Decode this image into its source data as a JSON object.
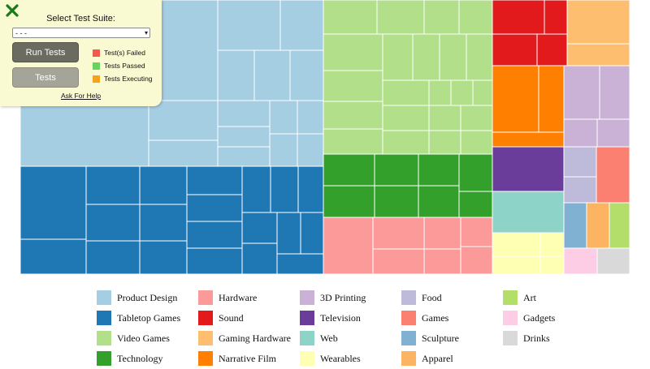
{
  "panel": {
    "title": "Select Test Suite:",
    "select_value": "- - -",
    "close_icon": "close-x-icon",
    "close_color": "#1a7a1a",
    "run_button": "Run Tests",
    "tests_button": "Tests",
    "help_link": "Ask For Help",
    "status": [
      {
        "label": "Test(s) Failed",
        "color": "#f05a4d"
      },
      {
        "label": "Tests Passed",
        "color": "#66d35f"
      },
      {
        "label": "Tests Executing",
        "color": "#f7a11d"
      }
    ]
  },
  "legend": [
    {
      "label": "Product Design",
      "color": "#a6cee3"
    },
    {
      "label": "Tabletop Games",
      "color": "#1f78b4"
    },
    {
      "label": "Video Games",
      "color": "#b2df8a"
    },
    {
      "label": "Technology",
      "color": "#33a02c"
    },
    {
      "label": "Hardware",
      "color": "#fb9a99"
    },
    {
      "label": "Sound",
      "color": "#e31a1c"
    },
    {
      "label": "Gaming Hardware",
      "color": "#fdbf6f"
    },
    {
      "label": "Narrative Film",
      "color": "#ff7f00"
    },
    {
      "label": "3D Printing",
      "color": "#cab2d6"
    },
    {
      "label": "Television",
      "color": "#6a3d9a"
    },
    {
      "label": "Web",
      "color": "#8dd3c7"
    },
    {
      "label": "Wearables",
      "color": "#ffffb3"
    },
    {
      "label": "Food",
      "color": "#bebada"
    },
    {
      "label": "Games",
      "color": "#fb8072"
    },
    {
      "label": "Sculpture",
      "color": "#80b1d3"
    },
    {
      "label": "Apparel",
      "color": "#fdb462"
    },
    {
      "label": "Art",
      "color": "#b3de69"
    },
    {
      "label": "Gadgets",
      "color": "#fccde5"
    },
    {
      "label": "Drinks",
      "color": "#d9d9d9"
    }
  ]
}
